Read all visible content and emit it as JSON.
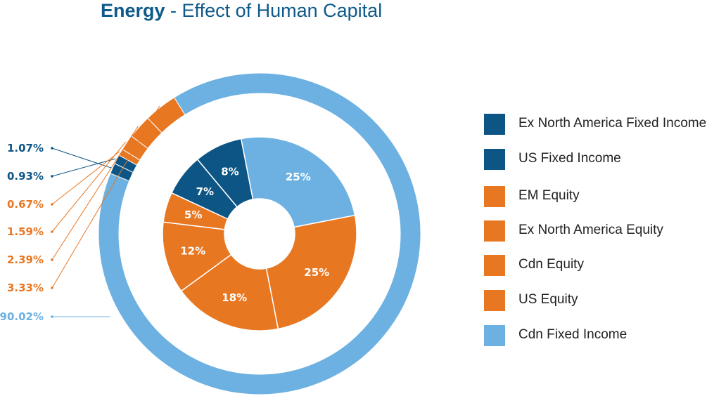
{
  "title": {
    "bold": "Energy",
    "rest": " - Effect of Human Capital"
  },
  "chart_data": {
    "type": "pie",
    "title": "Energy - Effect of Human Capital",
    "colors": {
      "dark_blue": "#0d5585",
      "orange": "#e87722",
      "light_blue": "#6cb1e1"
    },
    "legend_position": "right",
    "legend": [
      {
        "name": "Ex North America Fixed Income",
        "color": "#0d5585"
      },
      {
        "name": "US Fixed Income",
        "color": "#0d5585"
      },
      {
        "name": "EM Equity",
        "color": "#e87722"
      },
      {
        "name": "Ex North America Equity",
        "color": "#e87722"
      },
      {
        "name": "Cdn Equity",
        "color": "#e87722"
      },
      {
        "name": "US Equity",
        "color": "#e87722"
      },
      {
        "name": "Cdn Fixed Income",
        "color": "#6cb1e1"
      }
    ],
    "outer_ring": {
      "slices": [
        {
          "category": "Ex North America Fixed Income",
          "value": 1.07,
          "label": "1.07%",
          "color": "#0d5585"
        },
        {
          "category": "US Fixed Income",
          "value": 0.93,
          "label": "0.93%",
          "color": "#0d5585"
        },
        {
          "category": "EM Equity",
          "value": 0.67,
          "label": "0.67%",
          "color": "#e87722"
        },
        {
          "category": "Ex North America Equity",
          "value": 1.59,
          "label": "1.59%",
          "color": "#e87722"
        },
        {
          "category": "Cdn Equity",
          "value": 2.39,
          "label": "2.39%",
          "color": "#e87722"
        },
        {
          "category": "US Equity",
          "value": 3.33,
          "label": "3.33%",
          "color": "#e87722"
        },
        {
          "category": "Cdn Fixed Income",
          "value": 90.02,
          "label": "90.02%",
          "color": "#6cb1e1"
        }
      ]
    },
    "inner_ring": {
      "slices": [
        {
          "category": "Cdn Fixed Income",
          "value": 25,
          "label": "25%",
          "color": "#6cb1e1"
        },
        {
          "category": "US Equity",
          "value": 25,
          "label": "25%",
          "color": "#e87722"
        },
        {
          "category": "Cdn Equity",
          "value": 18,
          "label": "18%",
          "color": "#e87722"
        },
        {
          "category": "Ex North America Equity",
          "value": 12,
          "label": "12%",
          "color": "#e87722"
        },
        {
          "category": "EM Equity",
          "value": 5,
          "label": "5%",
          "color": "#e87722"
        },
        {
          "category": "US Fixed Income",
          "value": 7,
          "label": "7%",
          "color": "#0d5585"
        },
        {
          "category": "Ex North America Fixed Income",
          "value": 8,
          "label": "8%",
          "color": "#0d5585"
        }
      ]
    }
  }
}
